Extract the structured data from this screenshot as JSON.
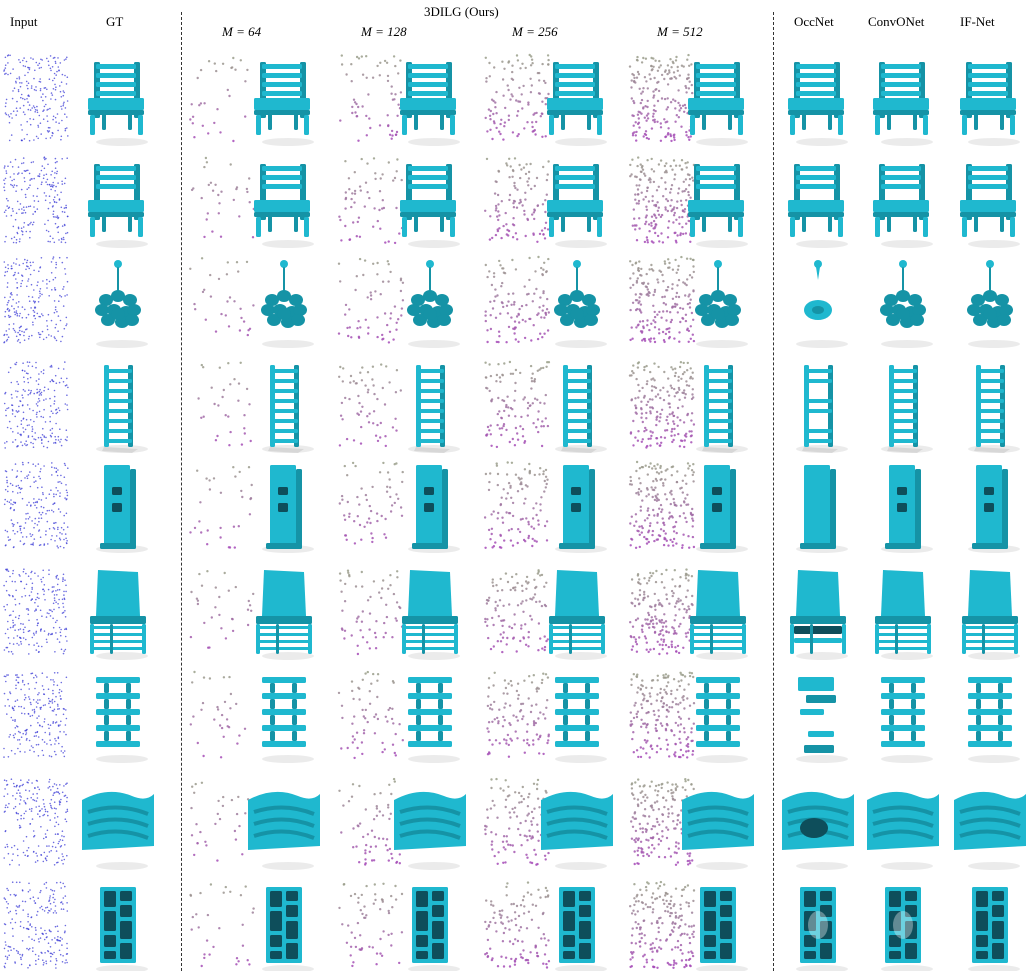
{
  "header": {
    "input": "Input",
    "gt": "GT",
    "group_title": "3DILG (Ours)",
    "m_values": [
      "M = 64",
      "M = 128",
      "M = 256",
      "M = 512"
    ],
    "baselines": [
      "OccNet",
      "ConvONet",
      "IF-Net"
    ]
  },
  "rows": [
    {
      "object": "chair-slatted"
    },
    {
      "object": "chair-ladderback"
    },
    {
      "object": "chandelier"
    },
    {
      "object": "ladder-shelf"
    },
    {
      "object": "speaker"
    },
    {
      "object": "chair-rack"
    },
    {
      "object": "shelf-organic"
    },
    {
      "object": "wave-bench"
    },
    {
      "object": "grid-bookcase"
    }
  ],
  "colors": {
    "mesh": "#1fb8cf",
    "mesh_shade": "#1593a6",
    "input_points": "#3b3bd6",
    "latent_low": "#9aa08a",
    "latent_high": "#a64ab8"
  }
}
